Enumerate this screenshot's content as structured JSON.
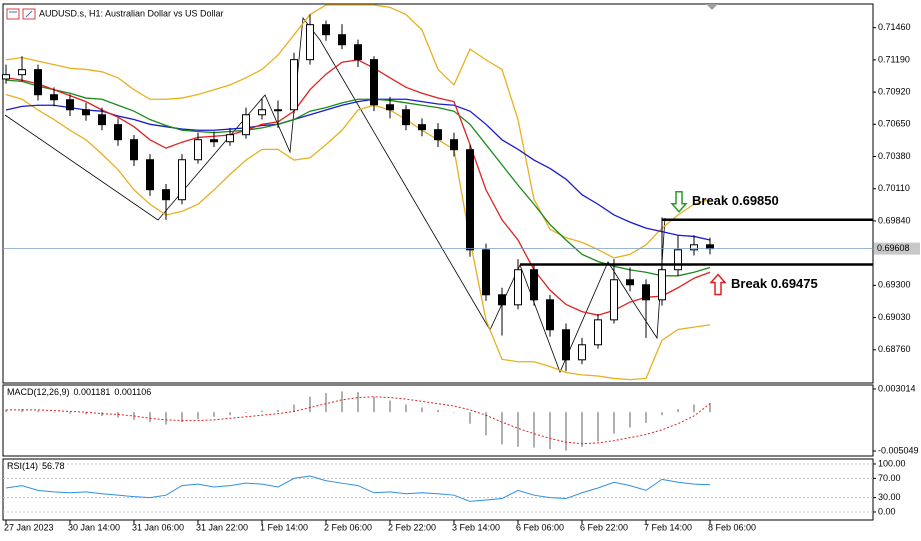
{
  "chart_data": [
    {
      "type": "candlestick",
      "title": "AUDUSD.s, H1:  Australian Dollar vs US Dollar",
      "categories": [
        "27 Jan 2023",
        null,
        null,
        null,
        "30 Jan 14:00",
        null,
        null,
        null,
        "31 Jan 06:00",
        null,
        null,
        null,
        "31 Jan 22:00",
        null,
        null,
        null,
        "1 Feb 14:00",
        null,
        null,
        null,
        "2 Feb 06:00",
        null,
        null,
        null,
        "2 Feb 22:00",
        null,
        null,
        null,
        "3 Feb 14:00",
        null,
        null,
        null,
        "6 Feb 06:00",
        null,
        null,
        null,
        "6 Feb 22:00",
        null,
        null,
        null,
        "7 Feb 14:00",
        null,
        null,
        null,
        "8 Feb 06:00"
      ],
      "up_color": "#ffffff",
      "down_color": "#000000",
      "ohlc": [
        [
          0.7103,
          0.7115,
          0.7099,
          0.71066
        ],
        [
          0.71066,
          0.7122,
          0.7101,
          0.71108
        ],
        [
          0.71108,
          0.7115,
          0.7085,
          0.70898
        ],
        [
          0.70898,
          0.7096,
          0.708,
          0.70856
        ],
        [
          0.70856,
          0.709,
          0.7072,
          0.70772
        ],
        [
          0.70772,
          0.7083,
          0.7068,
          0.7073
        ],
        [
          0.7073,
          0.7079,
          0.706,
          0.70647
        ],
        [
          0.70647,
          0.707,
          0.7047,
          0.70521
        ],
        [
          0.70521,
          0.7056,
          0.703,
          0.70353
        ],
        [
          0.70353,
          0.704,
          0.7005,
          0.70102
        ],
        [
          0.70102,
          0.7015,
          0.6985,
          0.70018
        ],
        [
          0.70018,
          0.704,
          0.6998,
          0.70353
        ],
        [
          0.70353,
          0.7058,
          0.7032,
          0.70521
        ],
        [
          0.70521,
          0.7059,
          0.7046,
          0.70504
        ],
        [
          0.70504,
          0.7062,
          0.7047,
          0.70563
        ],
        [
          0.70563,
          0.7079,
          0.7053,
          0.7073
        ],
        [
          0.7073,
          0.7087,
          0.7069,
          0.70772
        ],
        [
          0.70772,
          0.7085,
          0.7062,
          0.70772
        ],
        [
          0.70772,
          0.7125,
          0.7074,
          0.71192
        ],
        [
          0.71192,
          0.7157,
          0.7115,
          0.71485
        ],
        [
          0.71485,
          0.7152,
          0.7135,
          0.71401
        ],
        [
          0.71401,
          0.7149,
          0.7128,
          0.71317
        ],
        [
          0.71317,
          0.7136,
          0.7113,
          0.71192
        ],
        [
          0.71192,
          0.7122,
          0.7076,
          0.70814
        ],
        [
          0.70814,
          0.7088,
          0.707,
          0.70772
        ],
        [
          0.70772,
          0.7081,
          0.706,
          0.70647
        ],
        [
          0.70647,
          0.707,
          0.7055,
          0.70605
        ],
        [
          0.70605,
          0.7066,
          0.7046,
          0.70521
        ],
        [
          0.70521,
          0.7058,
          0.7038,
          0.70437
        ],
        [
          0.70437,
          0.7048,
          0.6954,
          0.69598
        ],
        [
          0.69598,
          0.6965,
          0.6917,
          0.69221
        ],
        [
          0.69221,
          0.6928,
          0.6888,
          0.69137
        ],
        [
          0.69137,
          0.6952,
          0.691,
          0.69431
        ],
        [
          0.69431,
          0.6948,
          0.6913,
          0.69179
        ],
        [
          0.69179,
          0.6922,
          0.6887,
          0.68928
        ],
        [
          0.68928,
          0.6898,
          0.6858,
          0.68676
        ],
        [
          0.68676,
          0.6886,
          0.6864,
          0.68802
        ],
        [
          0.68802,
          0.6906,
          0.6877,
          0.69011
        ],
        [
          0.69011,
          0.6952,
          0.6898,
          0.69347
        ],
        [
          0.69347,
          0.6945,
          0.6925,
          0.69305
        ],
        [
          0.69305,
          0.6935,
          0.6886,
          0.69179
        ],
        [
          0.69179,
          0.6987,
          0.6913,
          0.69431
        ],
        [
          0.69431,
          0.6972,
          0.6938,
          0.69598
        ],
        [
          0.69598,
          0.6972,
          0.6955,
          0.6964
        ],
        [
          0.6964,
          0.697,
          0.6956,
          0.69608
        ]
      ],
      "lines": [
        {
          "color": "#e8b020",
          "values": [
            0.7119,
            0.7121,
            0.7118,
            0.7115,
            0.7112,
            0.7111,
            0.7109,
            0.7104,
            0.7094,
            0.7086,
            0.7086,
            0.7087,
            0.709,
            0.7094,
            0.7098,
            0.7104,
            0.7111,
            0.7123,
            0.714,
            0.7157,
            0.7165,
            0.7165,
            0.7165,
            0.7165,
            0.7163,
            0.7157,
            0.7144,
            0.7111,
            0.7098,
            0.7128,
            0.7119,
            0.7111,
            0.7069,
            0.7002,
            0.6977,
            0.697,
            0.6966,
            0.696,
            0.6953,
            0.6956,
            0.6964,
            0.6978,
            0.6989,
            0.6998,
            0.7002
          ]
        },
        {
          "color": "#e8b020",
          "values": [
            0.709,
            0.7086,
            0.7077,
            0.7069,
            0.706,
            0.7052,
            0.704,
            0.7027,
            0.701,
            0.6998,
            0.6989,
            0.6992,
            0.6998,
            0.701,
            0.7023,
            0.7035,
            0.7044,
            0.7044,
            0.7035,
            0.7037,
            0.7048,
            0.706,
            0.7077,
            0.7081,
            0.7077,
            0.7069,
            0.706,
            0.7052,
            0.7044,
            0.6968,
            0.6901,
            0.6868,
            0.6866,
            0.6866,
            0.6862,
            0.6857,
            0.6855,
            0.6854,
            0.6852,
            0.6851,
            0.6852,
            0.6884,
            0.6893,
            0.6895,
            0.6897
          ]
        },
        {
          "color": "#1a1ad0",
          "values": [
            0.7077,
            0.708,
            0.7081,
            0.7081,
            0.7079,
            0.7077,
            0.7076,
            0.7072,
            0.7069,
            0.7065,
            0.7063,
            0.7061,
            0.706,
            0.706,
            0.7061,
            0.7062,
            0.7064,
            0.7065,
            0.7069,
            0.7073,
            0.7077,
            0.7081,
            0.7084,
            0.7086,
            0.7086,
            0.7086,
            0.7084,
            0.7082,
            0.7081,
            0.7076,
            0.7065,
            0.7052,
            0.7044,
            0.7035,
            0.7028,
            0.7019,
            0.7006,
            0.6998,
            0.6989,
            0.6983,
            0.6978,
            0.6975,
            0.6972,
            0.6971,
            0.6968
          ]
        },
        {
          "color": "#1a8a1a",
          "values": [
            0.7102,
            0.7101,
            0.7097,
            0.7094,
            0.7091,
            0.7087,
            0.7086,
            0.7081,
            0.7076,
            0.7069,
            0.7064,
            0.706,
            0.7059,
            0.7058,
            0.7059,
            0.706,
            0.7062,
            0.7065,
            0.7069,
            0.7076,
            0.7079,
            0.7083,
            0.7086,
            0.7086,
            0.7085,
            0.7083,
            0.7081,
            0.7079,
            0.7076,
            0.7065,
            0.7048,
            0.7031,
            0.7014,
            0.6998,
            0.6981,
            0.6968,
            0.6956,
            0.695,
            0.6946,
            0.6943,
            0.6941,
            0.6938,
            0.6938,
            0.6941,
            0.6945
          ]
        },
        {
          "color": "#e02020",
          "values": [
            0.7104,
            0.7102,
            0.7099,
            0.7094,
            0.7089,
            0.7084,
            0.7077,
            0.7071,
            0.7063,
            0.7052,
            0.7045,
            0.705,
            0.7054,
            0.7055,
            0.7056,
            0.706,
            0.7065,
            0.7067,
            0.7076,
            0.7094,
            0.7107,
            0.7117,
            0.7119,
            0.7112,
            0.7104,
            0.7096,
            0.7091,
            0.7087,
            0.7084,
            0.7048,
            0.701,
            0.6985,
            0.6968,
            0.6943,
            0.6926,
            0.6914,
            0.6908,
            0.6905,
            0.6909,
            0.6916,
            0.692,
            0.6921,
            0.6928,
            0.6936,
            0.6941
          ]
        }
      ],
      "price_line_color": "#7a9cc0",
      "annotations": [
        {
          "label": "Break 0.69850",
          "value": 0.6985,
          "arrow": "up",
          "color": "#2a9a2a"
        },
        {
          "label": "Break 0.69475",
          "value": 0.69475,
          "arrow": "down",
          "color": "#e02020"
        }
      ],
      "ylim": [
        0.6849,
        0.7165
      ],
      "yticks": [
        {
          "value": 0.7146,
          "label": "0.71460"
        },
        {
          "value": 0.7119,
          "label": "0.71190"
        },
        {
          "value": 0.7092,
          "label": "0.70920"
        },
        {
          "value": 0.7065,
          "label": "0.70650"
        },
        {
          "value": 0.7038,
          "label": "0.70380"
        },
        {
          "value": 0.7011,
          "label": "0.70110"
        },
        {
          "value": 0.6984,
          "label": "0.69840"
        },
        {
          "value": 0.693,
          "label": "0.69300"
        },
        {
          "value": 0.6903,
          "label": "0.69030"
        },
        {
          "value": 0.6876,
          "label": "0.68760"
        }
      ]
    },
    {
      "type": "macd",
      "title": "MACD(12,26,9)",
      "series": [
        {
          "color": "#b0b0b0",
          "values": [
            0.0003,
            0.0004,
            0.0002,
            0.0,
            -0.0002,
            -0.0003,
            -0.0005,
            -0.0007,
            -0.001,
            -0.0013,
            -0.0016,
            -0.0013,
            -0.0009,
            -0.0006,
            -0.0004,
            -0.0001,
            0.0002,
            0.0003,
            0.001,
            0.002,
            0.0025,
            0.0027,
            0.0026,
            0.002,
            0.0015,
            0.001,
            0.0006,
            0.0003,
            0.0,
            -0.0015,
            -0.003,
            -0.0042,
            -0.0045,
            -0.0046,
            -0.0048,
            -0.005,
            -0.0045,
            -0.0038,
            -0.0028,
            -0.002,
            -0.0014,
            -0.0004,
            0.0004,
            0.001,
            0.001181
          ]
        },
        {
          "color": "#e02020",
          "values": [
            0.0003,
            0.0003,
            0.0003,
            0.0002,
            0.0001,
            0.0,
            -0.0002,
            -0.0003,
            -0.0005,
            -0.0008,
            -0.001,
            -0.0011,
            -0.0011,
            -0.001,
            -0.0008,
            -0.0006,
            -0.0004,
            -0.0002,
            0.0001,
            0.0006,
            0.0011,
            0.0016,
            0.0019,
            0.002,
            0.0019,
            0.0017,
            0.0014,
            0.0011,
            0.0008,
            0.0003,
            -0.0004,
            -0.0013,
            -0.0021,
            -0.0028,
            -0.0034,
            -0.0039,
            -0.0041,
            -0.004,
            -0.0037,
            -0.0033,
            -0.0029,
            -0.0023,
            -0.0015,
            -0.0005,
            0.001106
          ]
        }
      ],
      "ylim": [
        -0.00557,
        0.0034
      ],
      "yticks": [
        0.003014,
        -0.005049
      ]
    },
    {
      "type": "rsi",
      "title": "RSI(14)",
      "color": "#2f8fe0",
      "values": [
        50,
        55,
        45,
        42,
        40,
        42,
        38,
        35,
        32,
        30,
        35,
        55,
        58,
        52,
        55,
        60,
        58,
        52,
        70,
        75,
        65,
        60,
        55,
        40,
        42,
        38,
        40,
        38,
        35,
        22,
        25,
        28,
        45,
        35,
        30,
        28,
        40,
        50,
        62,
        55,
        45,
        68,
        62,
        58,
        56.78
      ],
      "ylim": [
        -16.7,
        108.3
      ],
      "yticks": [
        {
          "value": 100,
          "label": "100.00"
        },
        {
          "value": 70,
          "label": "70.00"
        },
        {
          "value": 30,
          "label": "30.00"
        },
        {
          "value": 0,
          "label": "0.00"
        }
      ]
    }
  ]
}
